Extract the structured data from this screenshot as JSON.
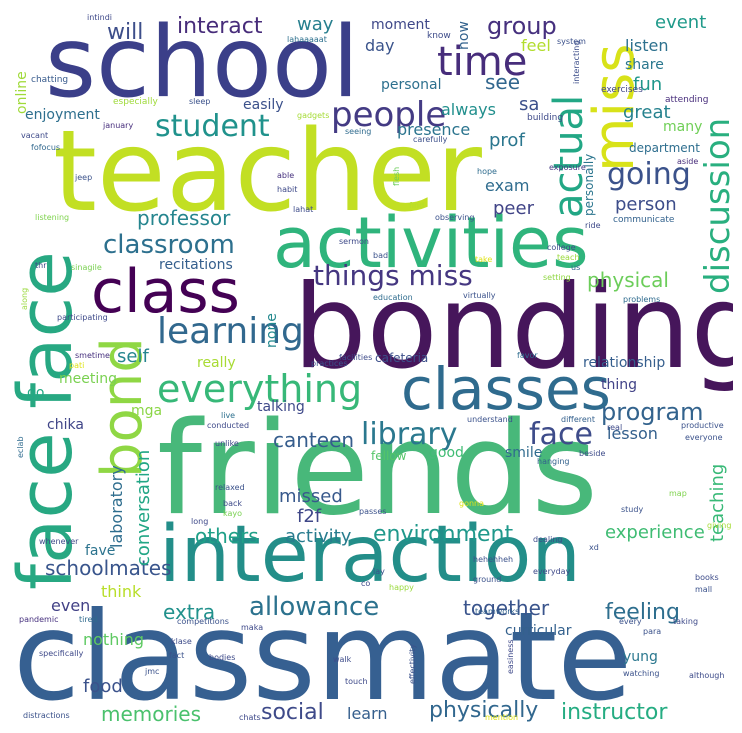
{
  "words": [
    {
      "text": "friends",
      "color": "#48b87a"
    },
    {
      "text": "classmate",
      "color": "#366091"
    },
    {
      "text": "bonding",
      "color": "#46165b"
    },
    {
      "text": "teacher",
      "color": "#c2df23"
    },
    {
      "text": "school",
      "color": "#3b3f89"
    },
    {
      "text": "interaction",
      "color": "#238e89"
    },
    {
      "text": "activities",
      "color": "#2fb47c"
    },
    {
      "text": "face face",
      "color": "#27a882"
    },
    {
      "text": "class",
      "color": "#440154"
    },
    {
      "text": "classes",
      "color": "#2f6b8e"
    },
    {
      "text": "bond",
      "color": "#8fd744"
    },
    {
      "text": "miss",
      "color": "#d8e219"
    },
    {
      "text": "everything",
      "color": "#37b878"
    },
    {
      "text": "time",
      "color": "#472d7b"
    },
    {
      "text": "people",
      "color": "#443b84"
    },
    {
      "text": "learning",
      "color": "#31688e"
    },
    {
      "text": "actual",
      "color": "#22a785"
    },
    {
      "text": "discussion",
      "color": "#29af7f"
    },
    {
      "text": "student",
      "color": "#20928c"
    },
    {
      "text": "library",
      "color": "#2a788e"
    },
    {
      "text": "face",
      "color": "#3e4c8a"
    },
    {
      "text": "things miss",
      "color": "#453781"
    },
    {
      "text": "classroom",
      "color": "#2d708e"
    },
    {
      "text": "going",
      "color": "#3b528b"
    },
    {
      "text": "program",
      "color": "#33638d"
    },
    {
      "text": "allowance",
      "color": "#2c728e"
    },
    {
      "text": "environment",
      "color": "#1f988b"
    },
    {
      "text": "interact",
      "color": "#472c7a"
    },
    {
      "text": "group",
      "color": "#46307e"
    },
    {
      "text": "will",
      "color": "#3d4e8a"
    },
    {
      "text": "professor",
      "color": "#25858e"
    },
    {
      "text": "canteen",
      "color": "#365d8d"
    },
    {
      "text": "physical",
      "color": "#6ccd5a"
    },
    {
      "text": "recitations",
      "color": "#355f8d"
    },
    {
      "text": "schoolmates",
      "color": "#39558c"
    },
    {
      "text": "memories",
      "color": "#4ac16d"
    },
    {
      "text": "social",
      "color": "#3e4a89"
    },
    {
      "text": "physically",
      "color": "#31678e"
    },
    {
      "text": "instructor",
      "color": "#25ac82"
    },
    {
      "text": "feeling",
      "color": "#2e6e8e"
    },
    {
      "text": "together",
      "color": "#3a548c"
    },
    {
      "text": "extra",
      "color": "#21918c"
    },
    {
      "text": "activity",
      "color": "#287c8e"
    },
    {
      "text": "experience",
      "color": "#3fbc73"
    },
    {
      "text": "teaching",
      "color": "#38b977"
    },
    {
      "text": "missed",
      "color": "#38598c"
    },
    {
      "text": "f2f",
      "color": "#3f4788"
    },
    {
      "text": "others",
      "color": "#1fa088"
    },
    {
      "text": "conversation",
      "color": "#21a685"
    },
    {
      "text": "laboratory",
      "color": "#2e6d8e"
    },
    {
      "text": "lesson",
      "color": "#34608d"
    },
    {
      "text": "person",
      "color": "#3d4d8a"
    },
    {
      "text": "exam",
      "color": "#2f6c8e"
    },
    {
      "text": "peer",
      "color": "#414487"
    },
    {
      "text": "prof",
      "color": "#2a768e"
    },
    {
      "text": "great",
      "color": "#26828e"
    },
    {
      "text": "fun",
      "color": "#1f978b"
    },
    {
      "text": "listen",
      "color": "#2d718e"
    },
    {
      "text": "share",
      "color": "#2a778e"
    },
    {
      "text": "event",
      "color": "#1f9a8a"
    },
    {
      "text": "moment",
      "color": "#3f4889"
    },
    {
      "text": "way",
      "color": "#277f8e"
    },
    {
      "text": "day",
      "color": "#3a538b"
    },
    {
      "text": "feel",
      "color": "#b2dd2d"
    },
    {
      "text": "see",
      "color": "#31668e"
    },
    {
      "text": "sa",
      "color": "#3c508b"
    },
    {
      "text": "always",
      "color": "#218f8d"
    },
    {
      "text": "presence",
      "color": "#2b748e"
    },
    {
      "text": "personal",
      "color": "#2d708e"
    },
    {
      "text": "now",
      "color": "#33628d"
    },
    {
      "text": "enjoyment",
      "color": "#2e6f8e"
    },
    {
      "text": "self",
      "color": "#25858e"
    },
    {
      "text": "really",
      "color": "#a8db34"
    },
    {
      "text": "meeting",
      "color": "#7ad151"
    },
    {
      "text": "go",
      "color": "#22a884"
    },
    {
      "text": "chika",
      "color": "#404588"
    },
    {
      "text": "mga",
      "color": "#8bd646"
    },
    {
      "text": "talking",
      "color": "#3e4989"
    },
    {
      "text": "none",
      "color": "#23898e"
    },
    {
      "text": "thing",
      "color": "#414287"
    },
    {
      "text": "relationship",
      "color": "#355e8d"
    },
    {
      "text": "cafeteria",
      "color": "#3c4f8a"
    },
    {
      "text": "online",
      "color": "#a0da39"
    },
    {
      "text": "even",
      "color": "#424186"
    },
    {
      "text": "fave",
      "color": "#2c738e"
    },
    {
      "text": "think",
      "color": "#b8de29"
    },
    {
      "text": "nothing",
      "color": "#5ec962"
    },
    {
      "text": "food",
      "color": "#3b528b"
    },
    {
      "text": "learn",
      "color": "#355f8d"
    },
    {
      "text": "yung",
      "color": "#2a778e"
    },
    {
      "text": "curricular",
      "color": "#34618d"
    },
    {
      "text": "smile",
      "color": "#2f6b8e"
    },
    {
      "text": "good",
      "color": "#3fbc73"
    },
    {
      "text": "fellow",
      "color": "#54c568"
    },
    {
      "text": "many",
      "color": "#70cf57"
    },
    {
      "text": "department",
      "color": "#2e6e8e"
    },
    {
      "text": "personally",
      "color": "#2b758e"
    },
    {
      "text": "especially",
      "color": "#9fda3a"
    },
    {
      "text": "easily",
      "color": "#3b518b"
    },
    {
      "text": "building",
      "color": "#3e4a89"
    },
    {
      "text": "exercises",
      "color": "#404688"
    },
    {
      "text": "chatting",
      "color": "#375a8c"
    },
    {
      "text": "intindi",
      "color": "#3e4989"
    },
    {
      "text": "lahaaaaat",
      "color": "#2d708e"
    },
    {
      "text": "know",
      "color": "#3e4c8a"
    },
    {
      "text": "system",
      "color": "#3b518b"
    },
    {
      "text": "interacting",
      "color": "#3d4e8a"
    },
    {
      "text": "attending",
      "color": "#472d7b"
    },
    {
      "text": "sleep",
      "color": "#3b528b"
    },
    {
      "text": "gadgets",
      "color": "#a5db36"
    },
    {
      "text": "january",
      "color": "#472e7c"
    },
    {
      "text": "vacant",
      "color": "#3e4a89"
    },
    {
      "text": "fofocus",
      "color": "#31688e"
    },
    {
      "text": "seeing",
      "color": "#2f6b8e"
    },
    {
      "text": "carefully",
      "color": "#3c508b"
    },
    {
      "text": "exposure",
      "color": "#443983"
    },
    {
      "text": "aside",
      "color": "#472c7a"
    },
    {
      "text": "hope",
      "color": "#2f6c8e"
    },
    {
      "text": "jeep",
      "color": "#3b528b"
    },
    {
      "text": "able",
      "color": "#46317e"
    },
    {
      "text": "habit",
      "color": "#3e4989"
    },
    {
      "text": "flesh",
      "color": "#6ccd5a"
    },
    {
      "text": "find",
      "color": "#b5de2b"
    },
    {
      "text": "lahat",
      "color": "#3e4c8a"
    },
    {
      "text": "observing",
      "color": "#3b528b"
    },
    {
      "text": "ride",
      "color": "#3e4989"
    },
    {
      "text": "communicate",
      "color": "#33628d"
    },
    {
      "text": "listening",
      "color": "#7fd34e"
    },
    {
      "text": "sermon",
      "color": "#3e4a89"
    },
    {
      "text": "bad",
      "color": "#3b528b"
    },
    {
      "text": "take",
      "color": "#dfe318"
    },
    {
      "text": "college",
      "color": "#3e4c8a"
    },
    {
      "text": "teach",
      "color": "#9ad93c"
    },
    {
      "text": "us",
      "color": "#34608d"
    },
    {
      "text": "setting",
      "color": "#90d743"
    },
    {
      "text": "thr",
      "color": "#3e4a89"
    },
    {
      "text": "sinagile",
      "color": "#7ad151"
    },
    {
      "text": "along",
      "color": "#9ad93c"
    },
    {
      "text": "education",
      "color": "#2f6c8e"
    },
    {
      "text": "virtually",
      "color": "#3b528b"
    },
    {
      "text": "problems",
      "color": "#2f6b8e"
    },
    {
      "text": "participating",
      "color": "#3e4a89"
    },
    {
      "text": "smetime",
      "color": "#46307e"
    },
    {
      "text": "practices",
      "color": "#3b528b"
    },
    {
      "text": "facilities",
      "color": "#3e4c8a"
    },
    {
      "text": "favor",
      "color": "#2f6c8e"
    },
    {
      "text": "productive",
      "color": "#3b528b"
    },
    {
      "text": "pati",
      "color": "#dfe318"
    },
    {
      "text": "live",
      "color": "#2d708e"
    },
    {
      "text": "conducted",
      "color": "#3e4989"
    },
    {
      "text": "understand",
      "color": "#3b528b"
    },
    {
      "text": "different",
      "color": "#34608d"
    },
    {
      "text": "real",
      "color": "#3e4a89"
    },
    {
      "text": "everyone",
      "color": "#3b528b"
    },
    {
      "text": "eclab",
      "color": "#2f6b8e"
    },
    {
      "text": "unlike",
      "color": "#3e4989"
    },
    {
      "text": "hanging",
      "color": "#33628d"
    },
    {
      "text": "beside",
      "color": "#3e4c8a"
    },
    {
      "text": "relaxed",
      "color": "#3b528b"
    },
    {
      "text": "back",
      "color": "#3e4a89"
    },
    {
      "text": "kayo",
      "color": "#7ad151"
    },
    {
      "text": "gonna",
      "color": "#dfe318"
    },
    {
      "text": "map",
      "color": "#7fd34e"
    },
    {
      "text": "study",
      "color": "#3b528b"
    },
    {
      "text": "giving",
      "color": "#a5db36"
    },
    {
      "text": "long",
      "color": "#3e4989"
    },
    {
      "text": "passes",
      "color": "#3b528b"
    },
    {
      "text": "whenever",
      "color": "#3e4a89"
    },
    {
      "text": "xd",
      "color": "#3b528b"
    },
    {
      "text": "dealing",
      "color": "#3e4c8a"
    },
    {
      "text": "hehehheh",
      "color": "#3b528b"
    },
    {
      "text": "everyday",
      "color": "#3e4989"
    },
    {
      "text": "lay",
      "color": "#3b528b"
    },
    {
      "text": "co",
      "color": "#3e4a89"
    },
    {
      "text": "happy",
      "color": "#9ad93c"
    },
    {
      "text": "ground",
      "color": "#3b528b"
    },
    {
      "text": "books",
      "color": "#3e4c8a"
    },
    {
      "text": "mall",
      "color": "#3b528b"
    },
    {
      "text": "pandemic",
      "color": "#46307e"
    },
    {
      "text": "tired",
      "color": "#2f6b8e"
    },
    {
      "text": "competitions",
      "color": "#3b528b"
    },
    {
      "text": "maka",
      "color": "#3e4989"
    },
    {
      "text": "teamworks",
      "color": "#33628d"
    },
    {
      "text": "klase",
      "color": "#3e4c8a"
    },
    {
      "text": "every",
      "color": "#3b528b"
    },
    {
      "text": "taking",
      "color": "#3e4a89"
    },
    {
      "text": "para",
      "color": "#3b528b"
    },
    {
      "text": "specifically",
      "color": "#3e4989"
    },
    {
      "text": "fact",
      "color": "#3b528b"
    },
    {
      "text": "bodies",
      "color": "#3e4a89"
    },
    {
      "text": "walk",
      "color": "#3e4c8a"
    },
    {
      "text": "effectivity",
      "color": "#3b528b"
    },
    {
      "text": "easiness",
      "color": "#3e4989"
    },
    {
      "text": "jmc",
      "color": "#3b528b"
    },
    {
      "text": "touch",
      "color": "#3e4a89"
    },
    {
      "text": "watching",
      "color": "#3b528b"
    },
    {
      "text": "although",
      "color": "#3e4c8a"
    },
    {
      "text": "distractions",
      "color": "#3b528b"
    },
    {
      "text": "chats",
      "color": "#3e4989"
    },
    {
      "text": "mention",
      "color": "#dfe318"
    }
  ]
}
